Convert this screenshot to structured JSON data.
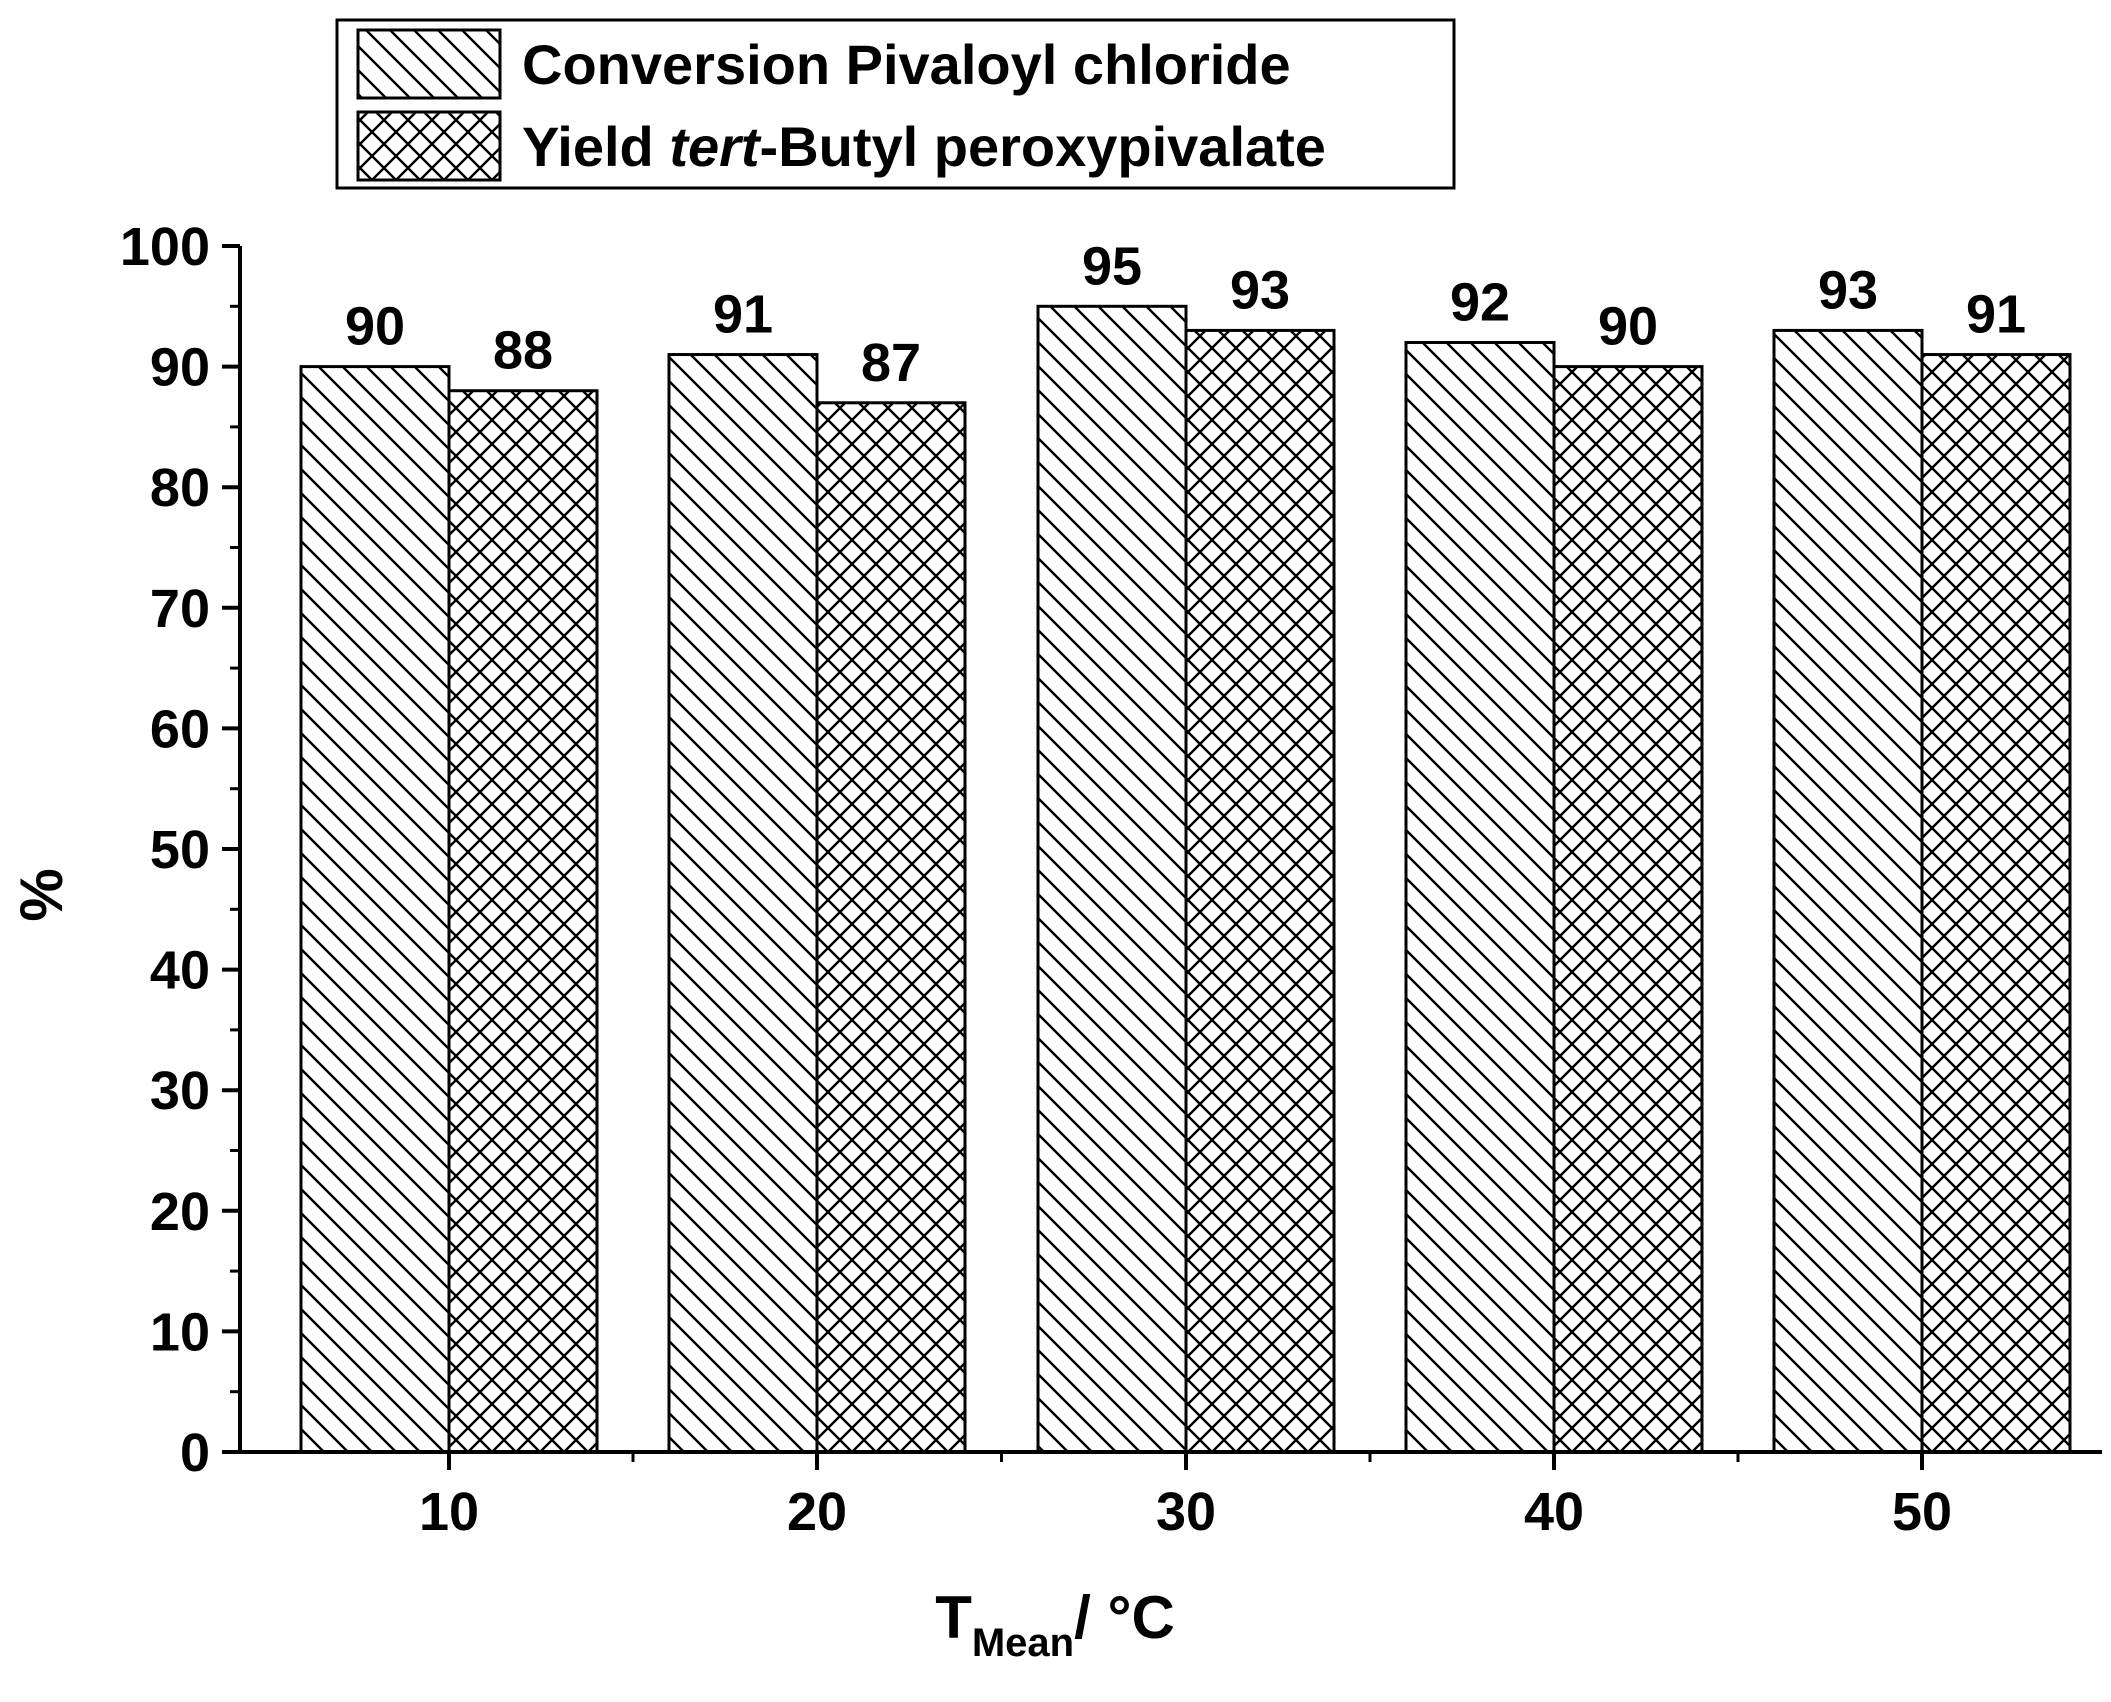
{
  "chart_data": {
    "type": "bar",
    "categories": [
      "10",
      "20",
      "30",
      "40",
      "50"
    ],
    "series": [
      {
        "name_prefix": "Conversion Pivaloyl chloride",
        "name_italic": "",
        "name_suffix": "",
        "values": [
          90,
          91,
          95,
          92,
          93
        ],
        "pattern": "diagonal-hatch"
      },
      {
        "name_prefix": "Yield ",
        "name_italic": "tert",
        "name_suffix": "-Butyl peroxypivalate",
        "values": [
          88,
          87,
          93,
          90,
          91
        ],
        "pattern": "cross-hatch"
      }
    ],
    "xlabel": {
      "main": "T",
      "subscript": "Mean",
      "suffix": "/ °C"
    },
    "ylabel": "%",
    "ylim": [
      0,
      100
    ],
    "yticks": [
      0,
      10,
      20,
      30,
      40,
      50,
      60,
      70,
      80,
      90,
      100
    ],
    "legend_position": "top-left",
    "grid": false,
    "colors": {
      "stroke": "#000000",
      "fill": "#ffffff"
    }
  }
}
